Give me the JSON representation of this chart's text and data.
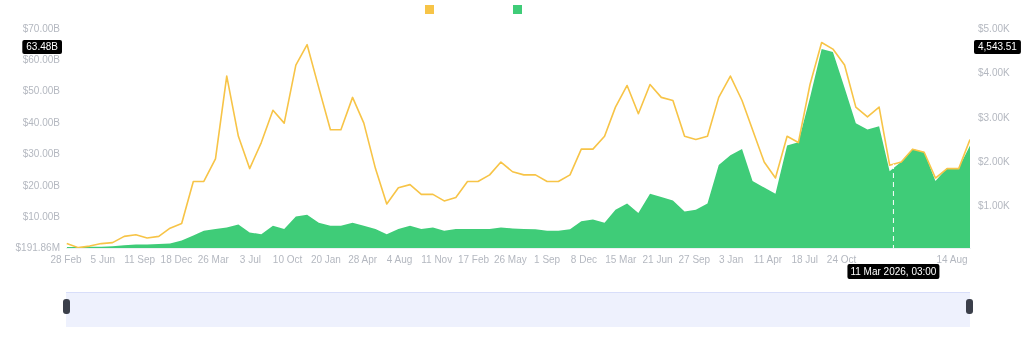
{
  "chart_data": {
    "type": "line",
    "x": [
      "2020-03",
      "2020-04",
      "2020-05",
      "2020-06",
      "2020-07",
      "2020-08",
      "2020-09",
      "2020-10",
      "2020-11",
      "2020-12",
      "2021-01",
      "2021-02",
      "2021-03",
      "2021-04",
      "2021-05",
      "2021-06",
      "2021-07",
      "2021-08",
      "2021-09",
      "2021-10",
      "2021-11",
      "2021-12",
      "2022-01",
      "2022-02",
      "2022-03",
      "2022-04",
      "2022-05",
      "2022-06",
      "2022-07",
      "2022-08",
      "2022-09",
      "2022-10",
      "2022-11",
      "2022-12",
      "2023-01",
      "2023-02",
      "2023-03",
      "2023-04",
      "2023-05",
      "2023-06",
      "2023-07",
      "2023-08",
      "2023-09",
      "2023-10",
      "2023-11",
      "2023-12",
      "2024-01",
      "2024-02",
      "2024-03",
      "2024-04",
      "2024-05",
      "2024-06",
      "2024-07",
      "2024-08",
      "2024-09",
      "2024-10",
      "2024-11",
      "2024-12",
      "2025-01",
      "2025-02",
      "2025-03",
      "2025-04",
      "2025-05",
      "2025-06",
      "2025-07",
      "2025-08",
      "2025-09",
      "2025-10",
      "2025-11",
      "2025-12",
      "2026-01",
      "2026-02",
      "2026-03",
      "2026-04",
      "2026-05",
      "2026-06",
      "2026-07",
      "2026-08",
      "2026-09",
      "2026-10"
    ],
    "series": [
      {
        "type": "area",
        "axis": "y2",
        "color": "#3fcc78",
        "values": [
          90,
          90,
          100,
          100,
          110,
          130,
          150,
          150,
          160,
          170,
          240,
          350,
          460,
          500,
          530,
          600,
          420,
          380,
          570,
          500,
          780,
          820,
          640,
          570,
          570,
          640,
          570,
          500,
          380,
          500,
          570,
          500,
          530,
          460,
          500,
          500,
          500,
          500,
          530,
          510,
          500,
          490,
          460,
          460,
          490,
          670,
          710,
          640,
          930,
          1070,
          860,
          1290,
          1220,
          1140,
          890,
          930,
          1070,
          1940,
          2160,
          2300,
          1580,
          1430,
          1290,
          2380,
          2450,
          3460,
          4550,
          4480,
          3680,
          2880,
          2740,
          2810,
          1800,
          2010,
          2300,
          2230,
          1580,
          1870,
          1870,
          2380
        ]
      },
      {
        "type": "line",
        "axis": "y",
        "color": "#f7c447",
        "values": [
          1600000000,
          300000000,
          800000000,
          1600000000,
          1900000000,
          3900000000,
          4400000000,
          3400000000,
          3900000000,
          6500000000,
          8000000000,
          21400000000,
          21400000000,
          28600000000,
          55000000000,
          35800000000,
          25500000000,
          33800000000,
          44100000000,
          40000000000,
          58500000000,
          65000000000,
          51300000000,
          37900000000,
          37900000000,
          48200000000,
          40000000000,
          25500000000,
          14200000000,
          19400000000,
          20400000000,
          17300000000,
          17300000000,
          15200000000,
          16300000000,
          21400000000,
          21400000000,
          23500000000,
          27600000000,
          24500000000,
          23500000000,
          23500000000,
          21400000000,
          21400000000,
          23500000000,
          31700000000,
          31700000000,
          35800000000,
          45100000000,
          52000000000,
          43000000000,
          52300000000,
          48200000000,
          47200000000,
          35800000000,
          34800000000,
          35800000000,
          48200000000,
          55000000000,
          47200000000,
          37900000000,
          27600000000,
          22500000000,
          35800000000,
          33800000000,
          52300000000,
          65700000000,
          63600000000,
          58500000000,
          45100000000,
          42000000000,
          45100000000,
          26600000000,
          27600000000,
          31700000000,
          30700000000,
          22500000000,
          25500000000,
          25500000000,
          34800000000
        ]
      }
    ],
    "xlim": [
      "2020-02-28",
      "2026-10"
    ],
    "xticks": [
      {
        "value": "2020-02-28",
        "label": "28 Feb"
      },
      {
        "value": "2020-06-05",
        "label": "5 Jun"
      },
      {
        "value": "2020-09-11",
        "label": "11 Sep"
      },
      {
        "value": "2020-12-18",
        "label": "18 Dec"
      },
      {
        "value": "2021-03-26",
        "label": "26 Mar"
      },
      {
        "value": "2021-07-03",
        "label": "3 Jul"
      },
      {
        "value": "2021-10-10",
        "label": "10 Oct"
      },
      {
        "value": "2022-01-20",
        "label": "20 Jan"
      },
      {
        "value": "2022-04-28",
        "label": "28 Apr"
      },
      {
        "value": "2022-08-04",
        "label": "4 Aug"
      },
      {
        "value": "2022-11-11",
        "label": "11 Nov"
      },
      {
        "value": "2023-02-17",
        "label": "17 Feb"
      },
      {
        "value": "2023-05-26",
        "label": "26 May"
      },
      {
        "value": "2023-09-01",
        "label": "1 Sep"
      },
      {
        "value": "2023-12-08",
        "label": "8 Dec"
      },
      {
        "value": "2024-03-15",
        "label": "15 Mar"
      },
      {
        "value": "2024-06-21",
        "label": "21 Jun"
      },
      {
        "value": "2024-09-27",
        "label": "27 Sep"
      },
      {
        "value": "2025-01-03",
        "label": "3 Jan"
      },
      {
        "value": "2025-04-11",
        "label": "11 Apr"
      },
      {
        "value": "2025-07-18",
        "label": "18 Jul"
      },
      {
        "value": "2025-10-24",
        "label": "24 Oct"
      },
      {
        "value": "2026-08-14",
        "label": "14 Aug"
      }
    ],
    "ylim": [
      191860000,
      70000000000
    ],
    "yticks": [
      {
        "value": 191860000,
        "label": "$191.86M"
      },
      {
        "value": 10000000000,
        "label": "$10.00B"
      },
      {
        "value": 20000000000,
        "label": "$20.00B"
      },
      {
        "value": 30000000000,
        "label": "$30.00B"
      },
      {
        "value": 40000000000,
        "label": "$40.00B"
      },
      {
        "value": 50000000000,
        "label": "$50.00B"
      },
      {
        "value": 60000000000,
        "label": "$60.00B"
      },
      {
        "value": 70000000000,
        "label": "$70.00B"
      }
    ],
    "y2lim": [
      70,
      5000
    ],
    "y2ticks": [
      {
        "value": 1000,
        "label": "$1.00K"
      },
      {
        "value": 2000,
        "label": "$2.00K"
      },
      {
        "value": 3000,
        "label": "$3.00K"
      },
      {
        "value": 4000,
        "label": "$4.00K"
      },
      {
        "value": 5000,
        "label": "$5.00K"
      }
    ],
    "annotations": [
      "63.48B",
      "4,543.51"
    ],
    "ref_lines": [
      {
        "axis": "x",
        "value": "2026-03-11T03:00",
        "label": "11 Mar 2026, 03:00",
        "color": "#ffffff",
        "line_style": "dashed"
      }
    ]
  }
}
